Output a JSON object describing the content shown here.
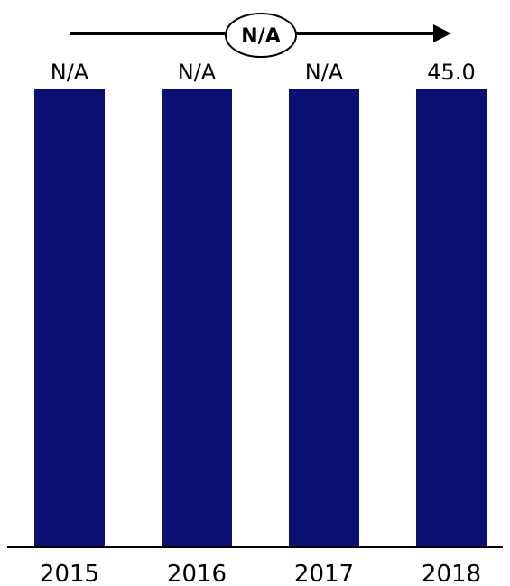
{
  "chart_data": {
    "type": "bar",
    "categories": [
      "2015",
      "2016",
      "2017",
      "2018"
    ],
    "values": [
      null,
      null,
      null,
      45.0
    ],
    "data_labels": [
      "N/A",
      "N/A",
      "N/A",
      "45.0"
    ],
    "title": "",
    "xlabel": "",
    "ylabel": "",
    "grid": false,
    "legend": "none",
    "growth_annotation": "N/A"
  },
  "colors": {
    "bar": "#0a1172",
    "axis": "#000000",
    "text": "#000000",
    "background": "#ffffff"
  }
}
